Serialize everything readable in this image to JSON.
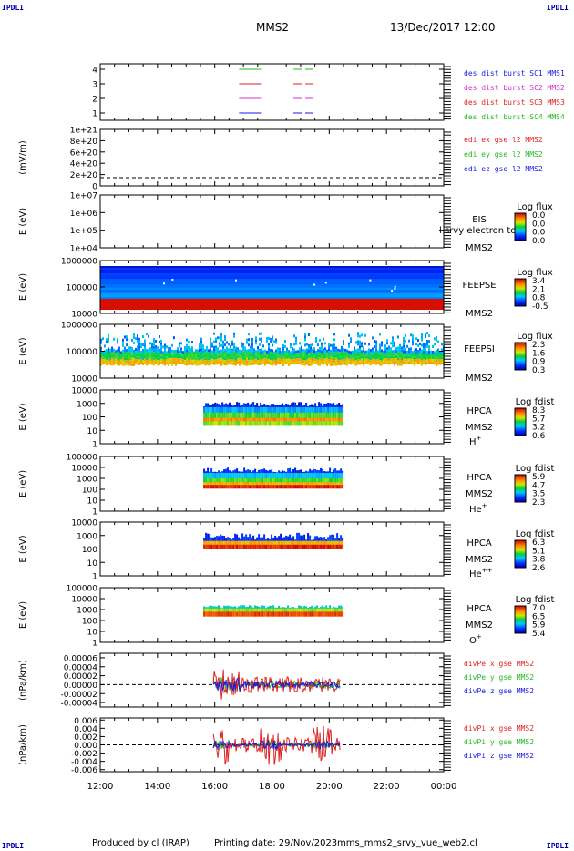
{
  "corners": {
    "top_left": "IPDLI",
    "top_right": "IPDLI",
    "bottom_left": "IPDLI",
    "bottom_right": "IPDLI"
  },
  "header": {
    "spacecraft": "MMS2",
    "datetime": "13/Dec/2017 12:00"
  },
  "footer": {
    "produced_by": "Produced by cl (IRAP)",
    "printing_date": "Printing date: 29/Nov/2023",
    "filename": "mms_mms2_srvy_vue_web2.cl"
  },
  "chart_data": {
    "type": "line",
    "x_axis": {
      "ticks": [
        "12:00",
        "14:00",
        "16:00",
        "18:00",
        "20:00",
        "22:00",
        "00:00"
      ],
      "range_hours": [
        12,
        24
      ]
    },
    "panels": [
      {
        "id": "des-dist",
        "kind": "availability",
        "ylabel": "",
        "yticks": [
          "4",
          "3",
          "2",
          "1"
        ],
        "legend": [
          {
            "text": "des dist burst SC1 MMS1",
            "color": "#1a1adc"
          },
          {
            "text": "des dist burst SC2 MMS2",
            "color": "#d030d0"
          },
          {
            "text": "des dist burst SC3 MMS3",
            "color": "#dd2222"
          },
          {
            "text": "des dist burst SC4 MMS4",
            "color": "#22bb22"
          }
        ],
        "segments": [
          {
            "row": 4,
            "color": "#22bb22",
            "from": 16.85,
            "to": 17.65,
            "dashed": false
          },
          {
            "row": 4,
            "color": "#22bb22",
            "from": 18.75,
            "to": 19.45,
            "dashed": true
          },
          {
            "row": 3,
            "color": "#dd2222",
            "from": 16.85,
            "to": 17.65,
            "dashed": false
          },
          {
            "row": 3,
            "color": "#dd2222",
            "from": 18.75,
            "to": 19.45,
            "dashed": true
          },
          {
            "row": 2,
            "color": "#d030d0",
            "from": 16.85,
            "to": 17.65,
            "dashed": false
          },
          {
            "row": 2,
            "color": "#d030d0",
            "from": 18.75,
            "to": 19.45,
            "dashed": true
          },
          {
            "row": 1,
            "color": "#1a1adc",
            "from": 16.85,
            "to": 17.65,
            "dashed": false
          },
          {
            "row": 1,
            "color": "#1a1adc",
            "from": 18.75,
            "to": 19.45,
            "dashed": true
          }
        ]
      },
      {
        "id": "edi",
        "kind": "line",
        "ylabel": "(mV/m)",
        "yticks": [
          "1e+21",
          "8e+20",
          "6e+20",
          "4e+20",
          "2e+20",
          "0"
        ],
        "legend": [
          {
            "text": "edi ex gse l2 MMS2",
            "color": "#dd2222"
          },
          {
            "text": "edi ey gse l2 MMS2",
            "color": "#22bb22"
          },
          {
            "text": "edi ez gse l2 MMS2",
            "color": "#1a1adc"
          }
        ]
      },
      {
        "id": "eis",
        "kind": "spectrogram",
        "ylabel": "E (eV)",
        "yticks": [
          "1e+07",
          "1e+06",
          "1e+05",
          "1e+04"
        ],
        "instrument": "EIS",
        "spacecraft": "MMS2",
        "extra_label": "l srvy electron to",
        "colorbar": {
          "title": "Log flux",
          "ticks": [
            "0.0",
            "0.0",
            "0.0",
            "0.0"
          ]
        }
      },
      {
        "id": "feepse",
        "kind": "spectrogram",
        "ylabel": "E (eV)",
        "yticks": [
          "1000000",
          "100000",
          "10000"
        ],
        "instrument": "FEEPSE",
        "spacecraft": "MMS2",
        "colorbar": {
          "title": "Log flux",
          "ticks": [
            "3.4",
            "2.1",
            "0.8",
            "-0.5"
          ]
        }
      },
      {
        "id": "feepsi",
        "kind": "spectrogram",
        "ylabel": "E (eV)",
        "yticks": [
          "1000000",
          "100000",
          "10000"
        ],
        "instrument": "FEEPSI",
        "spacecraft": "MMS2",
        "colorbar": {
          "title": "Log flux",
          "ticks": [
            "2.3",
            "1.6",
            "0.9",
            "0.3"
          ]
        }
      },
      {
        "id": "hpca-h",
        "kind": "spectrogram",
        "ylabel": "E (eV)",
        "yticks": [
          "10000",
          "1000",
          "100",
          "10",
          "1"
        ],
        "instrument": "HPCA",
        "spacecraft": "MMS2",
        "species": "H",
        "species_sup": "+",
        "colorbar": {
          "title": "Log fdist",
          "ticks": [
            "8.3",
            "5.7",
            "3.2",
            "0.6"
          ]
        }
      },
      {
        "id": "hpca-he1",
        "kind": "spectrogram",
        "ylabel": "E (eV)",
        "yticks": [
          "100000",
          "10000",
          "1000",
          "100",
          "10",
          "1"
        ],
        "instrument": "HPCA",
        "spacecraft": "MMS2",
        "species": "He",
        "species_sup": "+",
        "colorbar": {
          "title": "Log fdist",
          "ticks": [
            "5.9",
            "4.7",
            "3.5",
            "2.3"
          ]
        }
      },
      {
        "id": "hpca-he2",
        "kind": "spectrogram",
        "ylabel": "E (eV)",
        "yticks": [
          "10000",
          "1000",
          "100",
          "10",
          "1"
        ],
        "instrument": "HPCA",
        "spacecraft": "MMS2",
        "species": "He",
        "species_sup": "++",
        "colorbar": {
          "title": "Log fdist",
          "ticks": [
            "6.3",
            "5.1",
            "3.8",
            "2.6"
          ]
        }
      },
      {
        "id": "hpca-o",
        "kind": "spectrogram",
        "ylabel": "E (eV)",
        "yticks": [
          "100000",
          "10000",
          "1000",
          "100",
          "10",
          "1"
        ],
        "instrument": "HPCA",
        "spacecraft": "MMS2",
        "species": "O",
        "species_sup": "+",
        "colorbar": {
          "title": "Log fdist",
          "ticks": [
            "7.0",
            "6.5",
            "5.9",
            "5.4"
          ]
        }
      },
      {
        "id": "divpe",
        "kind": "line",
        "ylabel": "(nPa/km)",
        "yticks": [
          "0.00006",
          "0.00004",
          "0.00002",
          "0.00000",
          "-0.00002",
          "-0.00004"
        ],
        "ylim": [
          -5e-05,
          7e-05
        ],
        "legend": [
          {
            "text": "divPe x gse MMS2",
            "color": "#dd2222"
          },
          {
            "text": "divPe y gse MMS2",
            "color": "#22bb22"
          },
          {
            "text": "divPe z gse MMS2",
            "color": "#1a1adc"
          }
        ]
      },
      {
        "id": "divpi",
        "kind": "line",
        "ylabel": "(nPa/km)",
        "yticks": [
          "0.006",
          "0.004",
          "0.002",
          "0.000",
          "-0.002",
          "-0.004",
          "-0.006"
        ],
        "ylim": [
          -0.0065,
          0.0065
        ],
        "legend": [
          {
            "text": "divPi x gse MMS2",
            "color": "#dd2222"
          },
          {
            "text": "divPi y gse MMS2",
            "color": "#22bb22"
          },
          {
            "text": "divPi z gse MMS2",
            "color": "#1a1adc"
          }
        ]
      }
    ]
  }
}
